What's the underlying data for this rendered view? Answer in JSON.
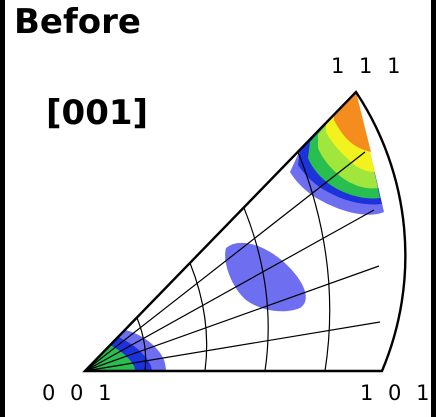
{
  "title": "Before",
  "direction_label": "[001]",
  "corners": {
    "c111": "1 1 1",
    "c001": "0 0 1",
    "c101": "1 0 1"
  },
  "colors": {
    "orange": "#f58c1e",
    "yellow": "#f2f21e",
    "light_green": "#a0e63c",
    "green": "#28be50",
    "blue": "#1e32dc",
    "light_blue": "#6e6ef0",
    "outline": "#000000"
  }
}
